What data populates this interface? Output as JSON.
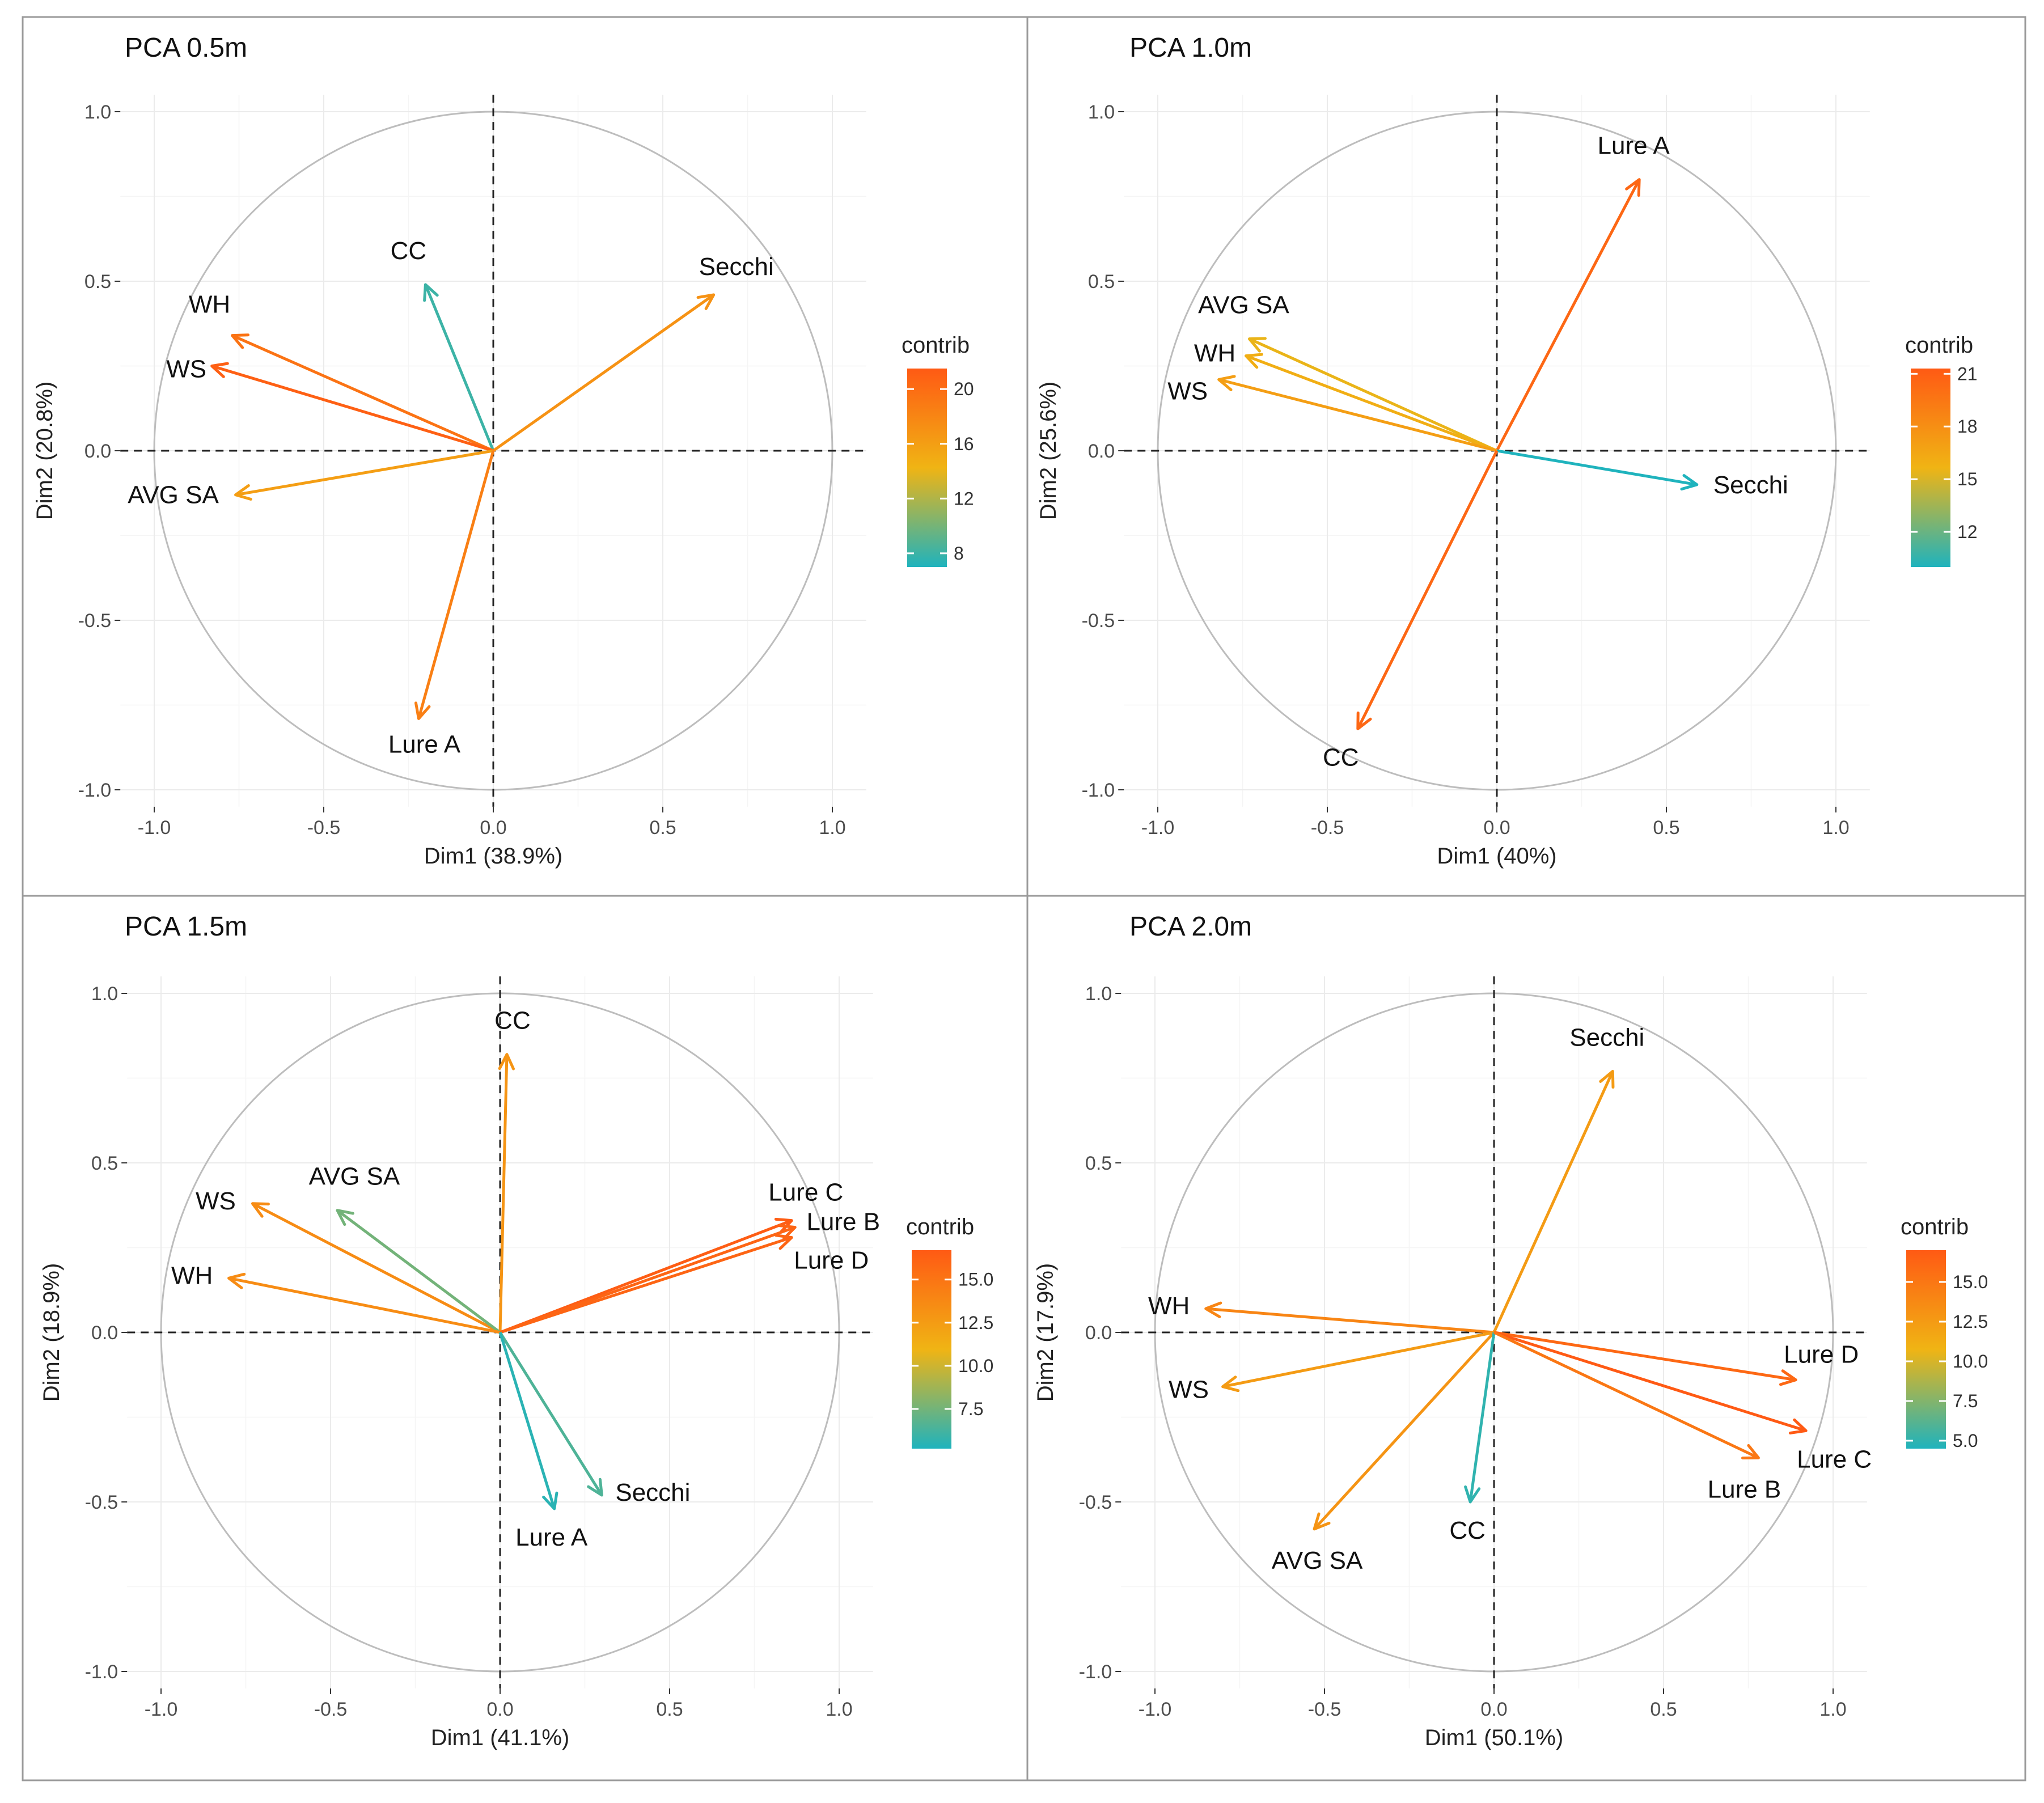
{
  "colors": {
    "low": "#1fb3bd",
    "mid": "#f0b414",
    "high": "#ff5a14",
    "circle": "#bdbdbd"
  },
  "chart_data": [
    {
      "type": "scatter",
      "subtype": "pca-variable-correlation-circle",
      "title": "PCA 0.5m",
      "xlabel": "Dim1 (38.9%)",
      "ylabel": "Dim2 (20.8%)",
      "xlim": [
        -1.0,
        1.0
      ],
      "ylim": [
        -1.0,
        1.0
      ],
      "xticks": [
        "-1.0",
        "-0.5",
        "0.0",
        "0.5",
        "1.0"
      ],
      "yticks": [
        "1.0",
        "0.5",
        "0.0",
        "-0.5",
        "-1.0"
      ],
      "legend": {
        "title": "contrib",
        "min": 7,
        "max": 21.5,
        "ticks": [
          8,
          12,
          16,
          20
        ],
        "tick_labels": [
          "8",
          "12",
          "16",
          "20"
        ]
      },
      "variables": [
        {
          "name": "CC",
          "x": -0.2,
          "y": 0.49,
          "contrib": 8
        },
        {
          "name": "Secchi",
          "x": 0.65,
          "y": 0.46,
          "contrib": 17
        },
        {
          "name": "WH",
          "x": -0.77,
          "y": 0.34,
          "contrib": 19.5
        },
        {
          "name": "WS",
          "x": -0.83,
          "y": 0.25,
          "contrib": 21
        },
        {
          "name": "AVG SA",
          "x": -0.76,
          "y": -0.13,
          "contrib": 16
        },
        {
          "name": "Lure A",
          "x": -0.22,
          "y": -0.79,
          "contrib": 18.5
        }
      ]
    },
    {
      "type": "scatter",
      "subtype": "pca-variable-correlation-circle",
      "title": "PCA 1.0m",
      "xlabel": "Dim1 (40%)",
      "ylabel": "Dim2 (25.6%)",
      "xlim": [
        -1.0,
        1.0
      ],
      "ylim": [
        -1.0,
        1.0
      ],
      "xticks": [
        "-1.0",
        "-0.5",
        "0.0",
        "0.5",
        "1.0"
      ],
      "yticks": [
        "1.0",
        "0.5",
        "0.0",
        "-0.5",
        "-1.0"
      ],
      "legend": {
        "title": "contrib",
        "min": 10,
        "max": 21.3,
        "ticks": [
          12,
          15,
          18,
          21
        ],
        "tick_labels": [
          "12",
          "15",
          "18",
          "21"
        ]
      },
      "variables": [
        {
          "name": "Lure A",
          "x": 0.42,
          "y": 0.8,
          "contrib": 20.5
        },
        {
          "name": "AVG SA",
          "x": -0.73,
          "y": 0.33,
          "contrib": 15.5
        },
        {
          "name": "WH",
          "x": -0.74,
          "y": 0.28,
          "contrib": 16
        },
        {
          "name": "WS",
          "x": -0.82,
          "y": 0.21,
          "contrib": 17
        },
        {
          "name": "Secchi",
          "x": 0.59,
          "y": -0.1,
          "contrib": 10
        },
        {
          "name": "CC",
          "x": -0.41,
          "y": -0.82,
          "contrib": 20.5
        }
      ]
    },
    {
      "type": "scatter",
      "subtype": "pca-variable-correlation-circle",
      "title": "PCA 1.5m",
      "xlabel": "Dim1 (41.1%)",
      "ylabel": "Dim2 (18.9%)",
      "xlim": [
        -1.0,
        1.0
      ],
      "ylim": [
        -1.0,
        1.0
      ],
      "xticks": [
        "-1.0",
        "-0.5",
        "0.0",
        "0.5",
        "1.0"
      ],
      "yticks": [
        "1.0",
        "0.5",
        "0.0",
        "-0.5",
        "-1.0"
      ],
      "legend": {
        "title": "contrib",
        "min": 5.2,
        "max": 16.7,
        "ticks": [
          7.5,
          10.0,
          12.5,
          15.0
        ],
        "tick_labels": [
          "7.5",
          "10.0",
          "12.5",
          "15.0"
        ]
      },
      "variables": [
        {
          "name": "CC",
          "x": 0.02,
          "y": 0.82,
          "contrib": 13
        },
        {
          "name": "WS",
          "x": -0.73,
          "y": 0.38,
          "contrib": 13.5
        },
        {
          "name": "AVG SA",
          "x": -0.48,
          "y": 0.36,
          "contrib": 7.5
        },
        {
          "name": "WH",
          "x": -0.8,
          "y": 0.16,
          "contrib": 13.5
        },
        {
          "name": "Lure C",
          "x": 0.86,
          "y": 0.33,
          "contrib": 16.5
        },
        {
          "name": "Lure B",
          "x": 0.87,
          "y": 0.31,
          "contrib": 16
        },
        {
          "name": "Lure D",
          "x": 0.86,
          "y": 0.28,
          "contrib": 16
        },
        {
          "name": "Secchi",
          "x": 0.3,
          "y": -0.48,
          "contrib": 6.5
        },
        {
          "name": "Lure A",
          "x": 0.16,
          "y": -0.52,
          "contrib": 5.5
        }
      ]
    },
    {
      "type": "scatter",
      "subtype": "pca-variable-correlation-circle",
      "title": "PCA 2.0m",
      "xlabel": "Dim1 (50.1%)",
      "ylabel": "Dim2 (17.9%)",
      "xlim": [
        -1.0,
        1.0
      ],
      "ylim": [
        -1.0,
        1.0
      ],
      "xticks": [
        "-1.0",
        "-0.5",
        "0.0",
        "0.5",
        "1.0"
      ],
      "yticks": [
        "1.0",
        "0.5",
        "0.0",
        "-0.5",
        "-1.0"
      ],
      "legend": {
        "title": "contrib",
        "min": 4.5,
        "max": 17.0,
        "ticks": [
          5.0,
          7.5,
          10.0,
          12.5,
          15.0
        ],
        "tick_labels": [
          "5.0",
          "7.5",
          "10.0",
          "12.5",
          "15.0"
        ]
      },
      "variables": [
        {
          "name": "Secchi",
          "x": 0.35,
          "y": 0.77,
          "contrib": 12.5
        },
        {
          "name": "WH",
          "x": -0.85,
          "y": 0.07,
          "contrib": 14
        },
        {
          "name": "WS",
          "x": -0.8,
          "y": -0.16,
          "contrib": 12.5
        },
        {
          "name": "AVG SA",
          "x": -0.53,
          "y": -0.58,
          "contrib": 13
        },
        {
          "name": "CC",
          "x": -0.07,
          "y": -0.5,
          "contrib": 5
        },
        {
          "name": "Lure D",
          "x": 0.89,
          "y": -0.14,
          "contrib": 16
        },
        {
          "name": "Lure C",
          "x": 0.92,
          "y": -0.29,
          "contrib": 17
        },
        {
          "name": "Lure B",
          "x": 0.78,
          "y": -0.37,
          "contrib": 15
        }
      ]
    }
  ]
}
